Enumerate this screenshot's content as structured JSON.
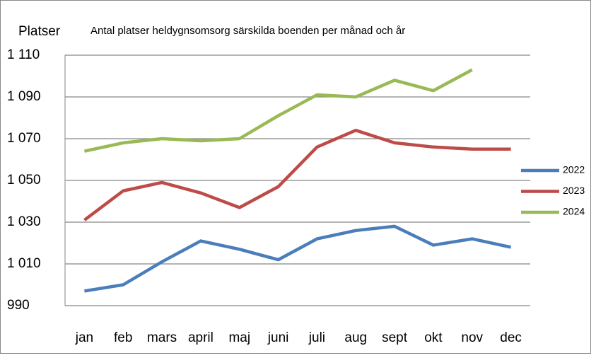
{
  "chart_data": {
    "type": "line",
    "y_label": "Platser",
    "title": "Antal platser heldygnsomsorg särskilda boenden per månad och år",
    "categories": [
      "jan",
      "feb",
      "mars",
      "april",
      "maj",
      "juni",
      "juli",
      "aug",
      "sept",
      "okt",
      "nov",
      "dec"
    ],
    "series": [
      {
        "name": "2022",
        "color": "#4a7ebb",
        "values": [
          997,
          1000,
          1011,
          1021,
          1017,
          1012,
          1022,
          1026,
          1028,
          1019,
          1022,
          1018
        ]
      },
      {
        "name": "2023",
        "color": "#be4b48",
        "values": [
          1031,
          1045,
          1049,
          1044,
          1037,
          1047,
          1066,
          1074,
          1068,
          1066,
          1065,
          1065
        ]
      },
      {
        "name": "2024",
        "color": "#98b954",
        "values": [
          1064,
          1068,
          1070,
          1069,
          1070,
          1081,
          1091,
          1090,
          1098,
          1093,
          1103,
          null
        ]
      }
    ],
    "ylim": [
      990,
      1110
    ],
    "yticks": [
      990,
      {
        "value": 1010,
        "label": "1 010"
      },
      {
        "value": 1030,
        "label": "1 030"
      },
      {
        "value": 1050,
        "label": "1 050"
      },
      {
        "value": 1070,
        "label": "1 070"
      },
      {
        "value": 1090,
        "label": "1 090"
      },
      {
        "value": 1110,
        "label": "1 110"
      }
    ],
    "grid": true,
    "legend": "right"
  }
}
